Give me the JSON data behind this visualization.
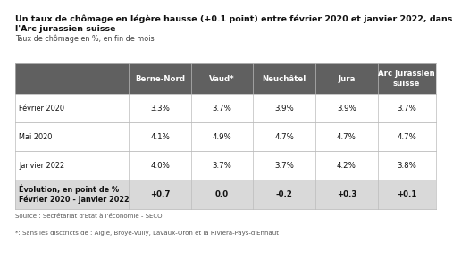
{
  "title_line1": "Un taux de chômage en légère hausse (+0.1 point) entre février 2020 et janvier 2022, dans",
  "title_line2": "l'Arc jurassien suisse",
  "subtitle": "Taux de chômage en %, en fin de mois",
  "source": "Source : Secrétariat d'Etat à l'économie - SECO",
  "footnote": "*: Sans les disctricts de : Aigle, Broye-Vully, Lavaux-Oron et la Riviera-Pays-d'Enhaut",
  "columns": [
    "Berne-Nord",
    "Vaud*",
    "Neuchâtel",
    "Jura",
    "Arc jurassien\nsuisse"
  ],
  "rows": [
    {
      "label": "Février 2020",
      "values": [
        "3.3%",
        "3.7%",
        "3.9%",
        "3.9%",
        "3.7%"
      ],
      "bold": false
    },
    {
      "label": "Mai 2020",
      "values": [
        "4.1%",
        "4.9%",
        "4.7%",
        "4.7%",
        "4.7%"
      ],
      "bold": false
    },
    {
      "label": "Janvier 2022",
      "values": [
        "4.0%",
        "3.7%",
        "3.7%",
        "4.2%",
        "3.8%"
      ],
      "bold": false
    },
    {
      "label": "Évolution, en point de %\nFévrier 2020 - janvier 2022",
      "values": [
        "+0.7",
        "0.0",
        "-0.2",
        "+0.3",
        "+0.1"
      ],
      "bold": true
    }
  ],
  "header_bg": "#606060",
  "header_fg": "#ffffff",
  "last_row_bg": "#d9d9d9",
  "grid_color": "#bbbbbb",
  "bg_color": "#ffffff",
  "title_fontsize": 6.8,
  "subtitle_fontsize": 5.8,
  "table_fontsize": 6.2,
  "source_fontsize": 5.0
}
